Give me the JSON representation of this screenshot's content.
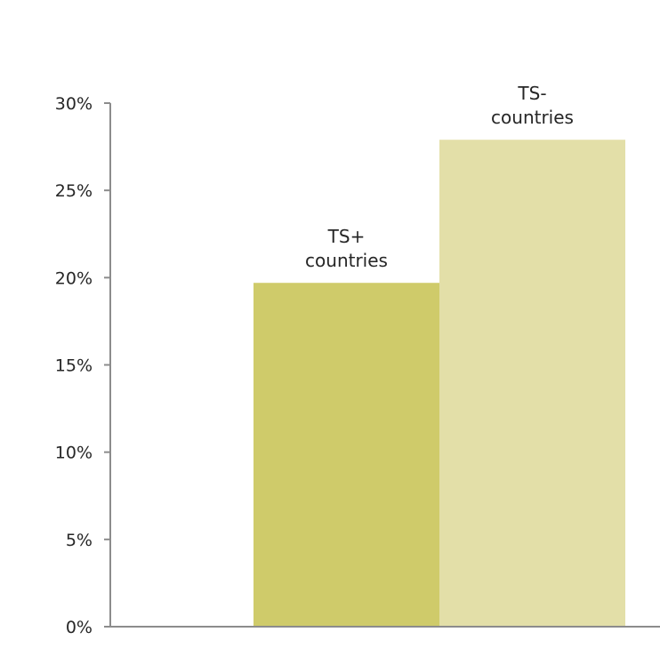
{
  "chart_data": {
    "type": "bar",
    "categories": [
      "TS+ countries",
      "TS- countries"
    ],
    "label_lines": [
      [
        "TS+",
        "countries"
      ],
      [
        "TS-",
        "countries"
      ]
    ],
    "values": [
      19.7,
      27.9
    ],
    "value_unit": "%",
    "ylim": [
      0,
      30
    ],
    "y_ticks": [
      0,
      5,
      10,
      15,
      20,
      25,
      30
    ],
    "y_tick_labels": [
      "0%",
      "5%",
      "10%",
      "15%",
      "20%",
      "25%",
      "30%"
    ],
    "colors": [
      "#cfcb6a",
      "#e3dfa8"
    ],
    "grid": false,
    "legend": "none",
    "title": "",
    "xlabel": "",
    "ylabel": ""
  }
}
